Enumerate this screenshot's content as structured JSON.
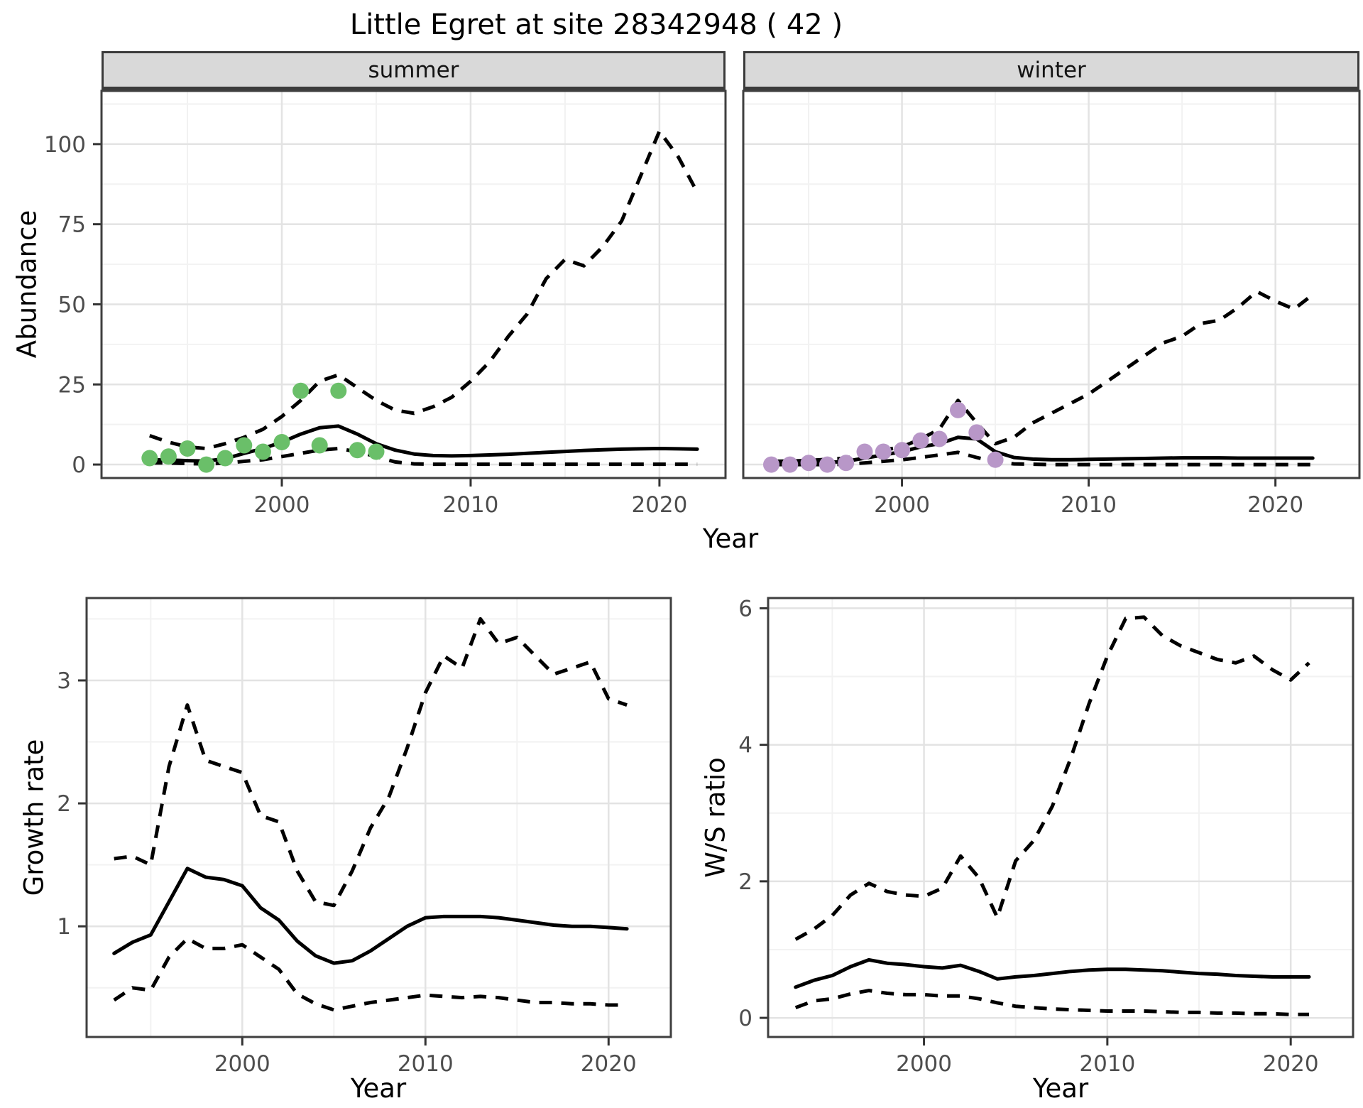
{
  "title": "Little Egret at site 28342948 ( 42 )",
  "facets": {
    "summer": "summer",
    "winter": "winter"
  },
  "axis": {
    "abundance_ylabel": "Abundance",
    "growth_ylabel": "Growth rate",
    "ws_ylabel": "W/S ratio",
    "top_xlabel": "Year",
    "growth_xlabel": "Year",
    "ws_xlabel": "Year"
  },
  "colors": {
    "summer_points": "#6abf69",
    "winter_points": "#b897c8",
    "line": "#000000",
    "grid_major": "#e3e3e3",
    "grid_minor": "#f2f2f2",
    "panel_border": "#3f3f3f",
    "tick_mark": "#333333",
    "tick_label": "#4d4d4d",
    "strip_bg": "#d9d9d9"
  },
  "chart_data": [
    {
      "id": "abundance_summer",
      "type": "line",
      "facet_label": "summer",
      "title": "Little Egret at site 28342948 ( 42 )",
      "xlabel": "Year",
      "ylabel": "Abundance",
      "xlim": [
        1990.45,
        2023.5
      ],
      "ylim": [
        -4.2,
        116.6
      ],
      "xticks": [
        2000,
        2010,
        2020
      ],
      "xticks_minor": [
        1995,
        2005,
        2015
      ],
      "yticks": [
        0,
        25,
        50,
        75,
        100
      ],
      "yticks_minor": [
        12.5,
        37.5,
        62.5,
        87.5,
        112.5
      ],
      "x_line": [
        1993,
        1994,
        1995,
        1996,
        1997,
        1998,
        1999,
        2000,
        2001,
        2002,
        2003,
        2004,
        2005,
        2006,
        2007,
        2008,
        2009,
        2010,
        2011,
        2012,
        2013,
        2014,
        2015,
        2016,
        2017,
        2018,
        2019,
        2020,
        2021,
        2022
      ],
      "fitted": [
        1.5,
        1.4,
        1.2,
        1.1,
        1.8,
        3.5,
        5,
        7,
        9.5,
        11.5,
        12,
        9.5,
        6.5,
        4.5,
        3.3,
        2.8,
        2.7,
        2.8,
        3,
        3.2,
        3.5,
        3.8,
        4.1,
        4.4,
        4.6,
        4.8,
        4.9,
        5,
        4.9,
        4.8
      ],
      "upper_ci": [
        9,
        7,
        5.5,
        5,
        6.5,
        8.5,
        11,
        15,
        20,
        26,
        28,
        24,
        20,
        17,
        16,
        18,
        21,
        26,
        32,
        40,
        47,
        58,
        64,
        62,
        68,
        76,
        90,
        104,
        96,
        85
      ],
      "lower_ci": [
        0.5,
        0.5,
        0.3,
        0.2,
        0.4,
        1,
        1.5,
        2.5,
        3.5,
        4.5,
        5,
        4,
        2.5,
        0.8,
        0.2,
        0.1,
        0.1,
        0.1,
        0.1,
        0.1,
        0.1,
        0.1,
        0.1,
        0.1,
        0.1,
        0.1,
        0.1,
        0.1,
        0.1,
        0.1
      ],
      "x_points": [
        1993,
        1994,
        1995,
        1996,
        1997,
        1998,
        1999,
        2000,
        2001,
        2002,
        2003,
        2004,
        2005
      ],
      "points": [
        2,
        2.5,
        5,
        0,
        2,
        6,
        4,
        7,
        23,
        6,
        23,
        4.5,
        4
      ],
      "point_color": "#6abf69"
    },
    {
      "id": "abundance_winter",
      "type": "line",
      "facet_label": "winter",
      "xlabel": "Year",
      "ylabel": "Abundance",
      "xlim": [
        1991.5,
        2024.5
      ],
      "ylim": [
        -4.2,
        116.6
      ],
      "xticks": [
        2000,
        2010,
        2020
      ],
      "xticks_minor": [
        1995,
        2005,
        2015
      ],
      "yticks": [
        0,
        25,
        50,
        75,
        100
      ],
      "yticks_minor": [
        12.5,
        37.5,
        62.5,
        87.5,
        112.5
      ],
      "x_line": [
        1993,
        1994,
        1995,
        1996,
        1997,
        1998,
        1999,
        2000,
        2001,
        2002,
        2003,
        2004,
        2005,
        2006,
        2007,
        2008,
        2009,
        2010,
        2011,
        2012,
        2013,
        2014,
        2015,
        2016,
        2017,
        2018,
        2019,
        2020,
        2021,
        2022
      ],
      "fitted": [
        0.3,
        0.3,
        0.4,
        0.6,
        1,
        2,
        3,
        4,
        5.5,
        6.5,
        8.5,
        8,
        4,
        2.2,
        1.7,
        1.5,
        1.5,
        1.6,
        1.7,
        1.8,
        1.9,
        2,
        2.1,
        2.1,
        2.1,
        2,
        2,
        2,
        2,
        2
      ],
      "upper_ci": [
        1,
        1.1,
        1.3,
        1.6,
        2,
        3.5,
        4.5,
        5.5,
        8,
        11,
        20,
        13,
        6.5,
        8.5,
        13,
        16,
        19,
        22,
        26,
        30,
        34,
        38,
        40,
        44,
        45,
        49,
        54,
        51,
        48.5,
        53
      ],
      "lower_ci": [
        0,
        0,
        0,
        0,
        0.1,
        0.5,
        1,
        1.5,
        2.2,
        3,
        3.8,
        2.2,
        0.8,
        0.2,
        0.1,
        0,
        0,
        0,
        0,
        0,
        0,
        0,
        0,
        0,
        0,
        0,
        0,
        0,
        0,
        0
      ],
      "x_points": [
        1993,
        1994,
        1995,
        1996,
        1997,
        1998,
        1999,
        2000,
        2001,
        2002,
        2003,
        2004,
        2005
      ],
      "points": [
        0,
        0,
        0.5,
        0,
        0.5,
        4,
        4,
        4.5,
        7.5,
        8,
        17,
        10,
        1.5
      ],
      "point_color": "#b897c8"
    },
    {
      "id": "growth_rate",
      "type": "line",
      "xlabel": "Year",
      "ylabel": "Growth rate",
      "xlim": [
        1991.5,
        2023.4
      ],
      "ylim": [
        0.1,
        3.67
      ],
      "xticks": [
        2000,
        2010,
        2020
      ],
      "xticks_minor": [
        1995,
        2005,
        2015
      ],
      "yticks": [
        1,
        2,
        3
      ],
      "yticks_minor": [
        0.5,
        1.5,
        2.5,
        3.5
      ],
      "x_line": [
        1993,
        1994,
        1995,
        1996,
        1997,
        1998,
        1999,
        2000,
        2001,
        2002,
        2003,
        2004,
        2005,
        2006,
        2007,
        2008,
        2009,
        2010,
        2011,
        2012,
        2013,
        2014,
        2015,
        2016,
        2017,
        2018,
        2019,
        2020,
        2021
      ],
      "fitted": [
        0.78,
        0.87,
        0.93,
        1.2,
        1.47,
        1.4,
        1.38,
        1.33,
        1.15,
        1.05,
        0.88,
        0.76,
        0.7,
        0.72,
        0.8,
        0.9,
        1,
        1.07,
        1.08,
        1.08,
        1.08,
        1.07,
        1.05,
        1.03,
        1.01,
        1,
        1,
        0.99,
        0.98
      ],
      "upper_ci": [
        1.55,
        1.57,
        1.5,
        2.3,
        2.8,
        2.35,
        2.3,
        2.25,
        1.9,
        1.85,
        1.45,
        1.2,
        1.17,
        1.45,
        1.8,
        2.05,
        2.45,
        2.9,
        3.2,
        3.1,
        3.5,
        3.3,
        3.35,
        3.2,
        3.05,
        3.1,
        3.15,
        2.85,
        2.8
      ],
      "lower_ci": [
        0.4,
        0.5,
        0.48,
        0.75,
        0.9,
        0.82,
        0.82,
        0.85,
        0.75,
        0.65,
        0.45,
        0.37,
        0.32,
        0.35,
        0.38,
        0.4,
        0.42,
        0.44,
        0.43,
        0.42,
        0.43,
        0.42,
        0.4,
        0.38,
        0.38,
        0.37,
        0.37,
        0.36,
        0.36
      ]
    },
    {
      "id": "ws_ratio",
      "type": "line",
      "xlabel": "Year",
      "ylabel": "W/S ratio",
      "xlim": [
        1991.5,
        2023.4
      ],
      "ylim": [
        -0.28,
        6.15
      ],
      "xticks": [
        2000,
        2010,
        2020
      ],
      "xticks_minor": [
        1995,
        2005,
        2015
      ],
      "yticks": [
        0,
        2,
        4,
        6
      ],
      "yticks_minor": [
        1,
        3,
        5
      ],
      "x_line": [
        1993,
        1994,
        1995,
        1996,
        1997,
        1998,
        1999,
        2000,
        2001,
        2002,
        2003,
        2004,
        2005,
        2006,
        2007,
        2008,
        2009,
        2010,
        2011,
        2012,
        2013,
        2014,
        2015,
        2016,
        2017,
        2018,
        2019,
        2020,
        2021
      ],
      "fitted": [
        0.45,
        0.55,
        0.62,
        0.75,
        0.85,
        0.8,
        0.78,
        0.75,
        0.73,
        0.77,
        0.68,
        0.57,
        0.6,
        0.62,
        0.65,
        0.68,
        0.7,
        0.71,
        0.71,
        0.7,
        0.69,
        0.67,
        0.65,
        0.64,
        0.62,
        0.61,
        0.6,
        0.6,
        0.6
      ],
      "upper_ci": [
        1.15,
        1.3,
        1.5,
        1.8,
        1.97,
        1.85,
        1.8,
        1.78,
        1.9,
        2.37,
        2.05,
        1.47,
        2.3,
        2.6,
        3.1,
        3.8,
        4.6,
        5.3,
        5.85,
        5.87,
        5.6,
        5.45,
        5.35,
        5.25,
        5.2,
        5.3,
        5.1,
        4.95,
        5.2
      ],
      "lower_ci": [
        0.15,
        0.25,
        0.28,
        0.35,
        0.4,
        0.36,
        0.34,
        0.34,
        0.32,
        0.32,
        0.28,
        0.22,
        0.17,
        0.15,
        0.13,
        0.12,
        0.11,
        0.1,
        0.1,
        0.1,
        0.09,
        0.08,
        0.08,
        0.07,
        0.07,
        0.06,
        0.06,
        0.05,
        0.05
      ]
    }
  ]
}
